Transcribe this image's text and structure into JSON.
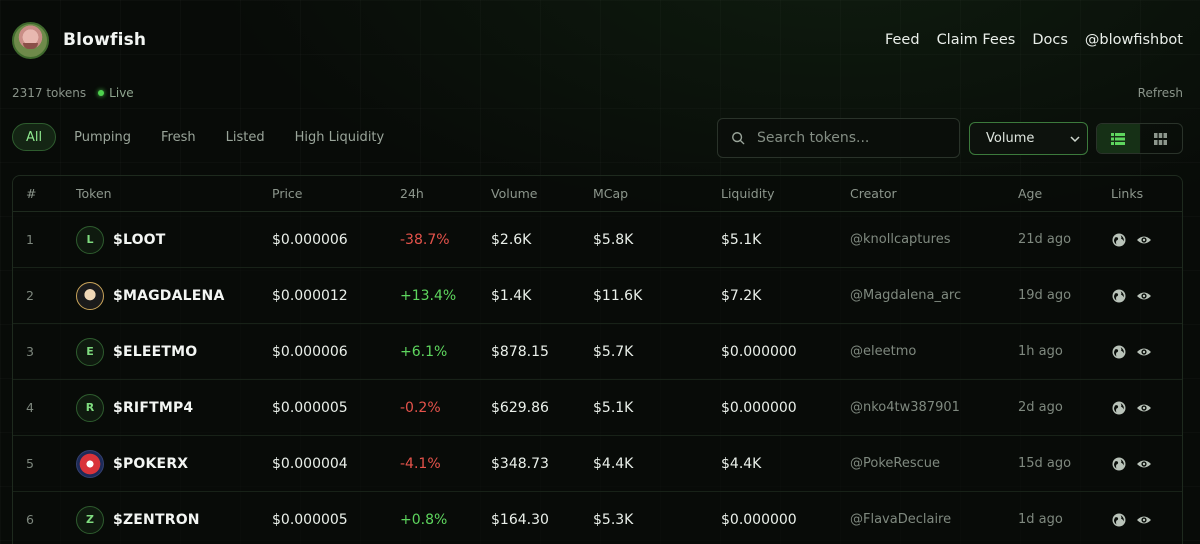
{
  "header": {
    "brand": "Blowfish",
    "nav": [
      "Feed",
      "Claim Fees",
      "Docs",
      "@blowfishbot"
    ]
  },
  "status": {
    "token_count": "2317 tokens",
    "live": "Live",
    "refresh": "Refresh"
  },
  "filters": {
    "chips": [
      "All",
      "Pumping",
      "Fresh",
      "Listed",
      "High Liquidity"
    ],
    "active": "All"
  },
  "search": {
    "placeholder": "Search tokens..."
  },
  "sort": {
    "selected": "Volume"
  },
  "table": {
    "columns": [
      "#",
      "Token",
      "Price",
      "24h",
      "Volume",
      "MCap",
      "Liquidity",
      "Creator",
      "Age",
      "Links"
    ],
    "rows": [
      {
        "num": "1",
        "avatar": "L",
        "avatar_style": "letter",
        "symbol": "$LOOT",
        "price": "$0.000006",
        "change": "-38.7%",
        "direction": "neg",
        "volume": "$2.6K",
        "mcap": "$5.8K",
        "liquidity": "$5.1K",
        "creator": "@knollcaptures",
        "age": "21d ago"
      },
      {
        "num": "2",
        "avatar": "",
        "avatar_style": "img-dark",
        "symbol": "$MAGDALENA",
        "price": "$0.000012",
        "change": "+13.4%",
        "direction": "pos",
        "volume": "$1.4K",
        "mcap": "$11.6K",
        "liquidity": "$7.2K",
        "creator": "@Magdalena_arc",
        "age": "19d ago"
      },
      {
        "num": "3",
        "avatar": "E",
        "avatar_style": "letter",
        "symbol": "$ELEETMO",
        "price": "$0.000006",
        "change": "+6.1%",
        "direction": "pos",
        "volume": "$878.15",
        "mcap": "$5.7K",
        "liquidity": "$0.000000",
        "creator": "@eleetmo",
        "age": "1h ago"
      },
      {
        "num": "4",
        "avatar": "R",
        "avatar_style": "letter",
        "symbol": "$RIFTMP4",
        "price": "$0.000005",
        "change": "-0.2%",
        "direction": "neg",
        "volume": "$629.86",
        "mcap": "$5.1K",
        "liquidity": "$0.000000",
        "creator": "@nko4tw387901",
        "age": "2d ago"
      },
      {
        "num": "5",
        "avatar": "",
        "avatar_style": "img-poke",
        "symbol": "$POKERX",
        "price": "$0.000004",
        "change": "-4.1%",
        "direction": "neg",
        "volume": "$348.73",
        "mcap": "$4.4K",
        "liquidity": "$4.4K",
        "creator": "@PokeRescue",
        "age": "15d ago"
      },
      {
        "num": "6",
        "avatar": "Z",
        "avatar_style": "letter",
        "symbol": "$ZENTRON",
        "price": "$0.000005",
        "change": "+0.8%",
        "direction": "pos",
        "volume": "$164.30",
        "mcap": "$5.3K",
        "liquidity": "$0.000000",
        "creator": "@FlavaDeclaire",
        "age": "1d ago"
      }
    ]
  },
  "icons": {
    "search": "search-icon",
    "chevron": "chevron-down-icon",
    "list_view": "list-view-icon",
    "grid_view": "grid-view-icon",
    "website": "globe-icon",
    "view": "eye-icon"
  },
  "colors": {
    "accent": "#5ed65e",
    "negative": "#e5534b",
    "live": "#4ed14e"
  }
}
